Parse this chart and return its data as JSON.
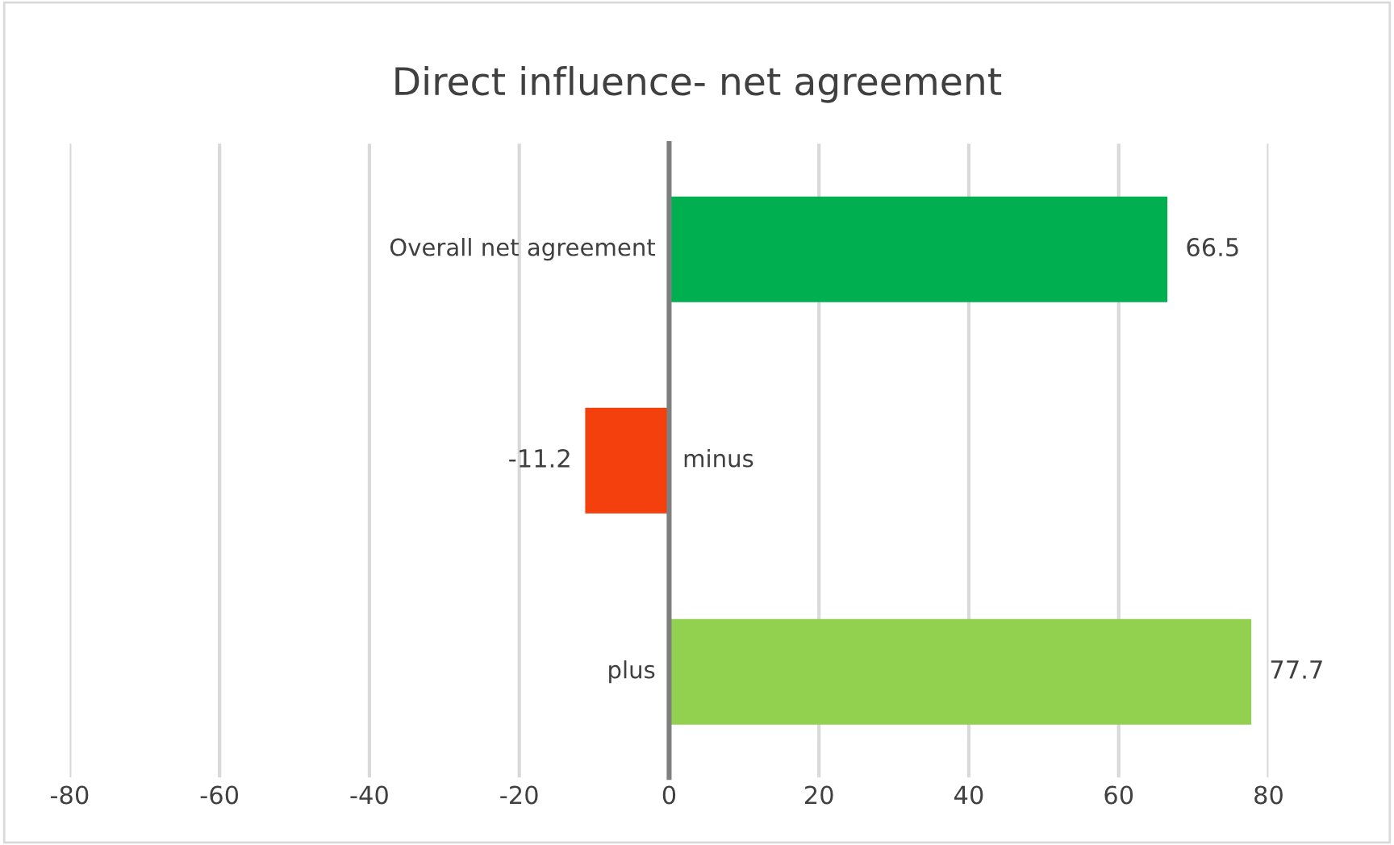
{
  "chart_data": {
    "type": "bar",
    "orientation": "horizontal",
    "title": "Direct influence- net agreement",
    "categories": [
      "Overall net agreement",
      "minus",
      "plus"
    ],
    "values": [
      66.5,
      -11.2,
      77.7
    ],
    "colors": [
      "#00b050",
      "#f4400c",
      "#92d050"
    ],
    "xlim": [
      -80,
      80
    ],
    "xticks": [
      -80,
      -60,
      -40,
      -20,
      0,
      20,
      40,
      60,
      80
    ],
    "grid": "x",
    "data_labels": true
  }
}
